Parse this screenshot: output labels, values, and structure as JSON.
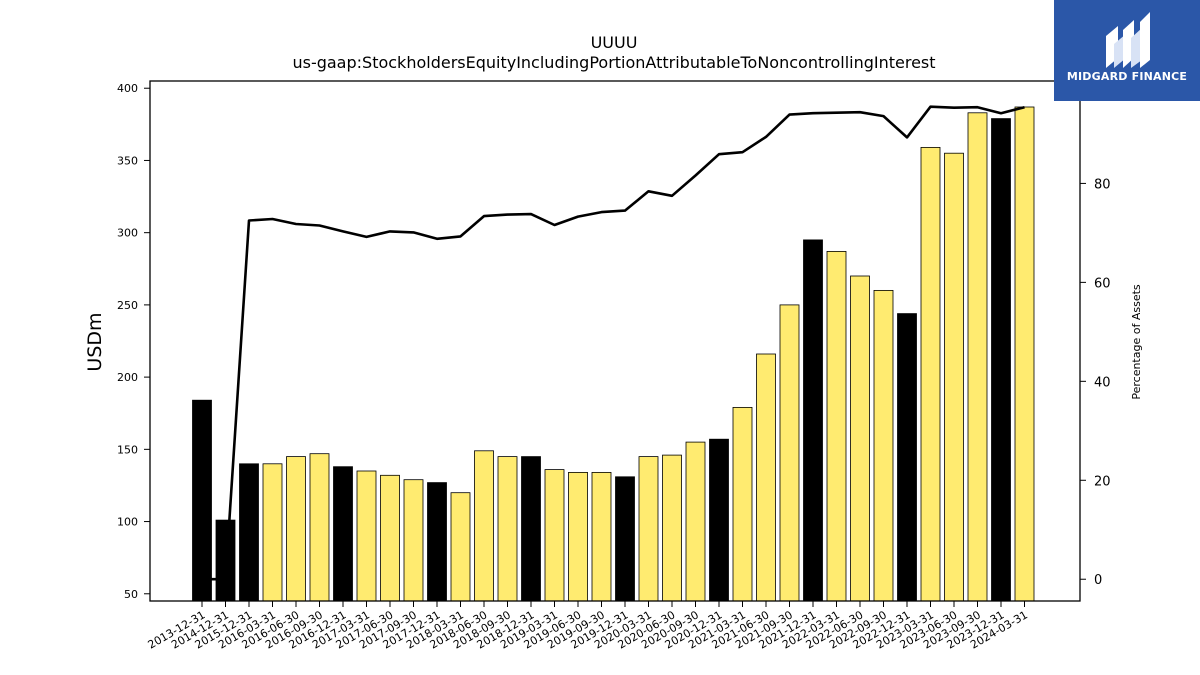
{
  "chart_data": {
    "type": "bar",
    "title": "UUUU",
    "subtitle": "us-gaap:StockholdersEquityIncludingPortionAttributableToNoncontrollingInterest",
    "ylabel": "USDm",
    "y2label": "Percentage of Assets",
    "ylim": [
      45,
      405
    ],
    "y2lim": [
      -4.4,
      100.7
    ],
    "yticks": [
      50,
      100,
      150,
      200,
      250,
      300,
      350,
      400
    ],
    "y2ticks": [
      0,
      20,
      40,
      60,
      80
    ],
    "categories": [
      "2013-12-31",
      "2014-12-31",
      "2015-12-31",
      "2016-03-31",
      "2016-06-30",
      "2016-09-30",
      "2016-12-31",
      "2017-03-31",
      "2017-06-30",
      "2017-09-30",
      "2017-12-31",
      "2018-03-31",
      "2018-06-30",
      "2018-09-30",
      "2018-12-31",
      "2019-03-31",
      "2019-06-30",
      "2019-09-30",
      "2019-12-31",
      "2020-03-31",
      "2020-06-30",
      "2020-09-30",
      "2020-12-31",
      "2021-03-31",
      "2021-06-30",
      "2021-09-30",
      "2021-12-31",
      "2022-03-31",
      "2022-06-30",
      "2022-09-30",
      "2022-12-31",
      "2023-03-31",
      "2023-06-30",
      "2023-09-30",
      "2023-12-31",
      "2024-03-31"
    ],
    "series": [
      {
        "type": "bar",
        "values": [
          184,
          101,
          140,
          140,
          145,
          147,
          138,
          135,
          132,
          129,
          127,
          120,
          149,
          145,
          145,
          136,
          134,
          134,
          131,
          145,
          146,
          155,
          157,
          179,
          216,
          250,
          295,
          287,
          270,
          260,
          244,
          359,
          355,
          383,
          379,
          387
        ],
        "annual": [
          true,
          true,
          true,
          false,
          false,
          false,
          true,
          false,
          false,
          false,
          true,
          false,
          false,
          false,
          true,
          false,
          false,
          false,
          true,
          false,
          false,
          false,
          true,
          false,
          false,
          false,
          true,
          false,
          false,
          false,
          true,
          false,
          false,
          false,
          true,
          false
        ],
        "annual_color": "#000000",
        "quarter_color": "#ffeb70"
      },
      {
        "type": "line",
        "axis": "right",
        "values": [
          0,
          0,
          72.5,
          72.8,
          71.8,
          71.5,
          70.3,
          69.2,
          70.3,
          70.1,
          68.8,
          69.3,
          73.4,
          73.7,
          73.8,
          71.6,
          73.3,
          74.2,
          74.5,
          78.4,
          77.5,
          81.6,
          85.9,
          86.3,
          89.4,
          93.9,
          94.2,
          94.3,
          94.4,
          93.6,
          89.3,
          95.5,
          95.3,
          95.4,
          94.2,
          95.4
        ],
        "color": "#000000"
      }
    ]
  },
  "logo": {
    "text": "MIDGARD FINANCE",
    "bg": "#2b57a8"
  }
}
